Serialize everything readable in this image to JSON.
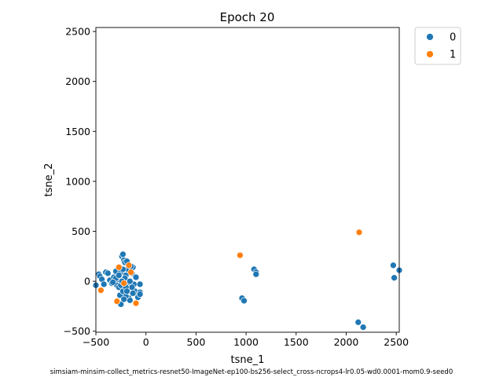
{
  "chart_data": {
    "type": "scatter",
    "title": "Epoch 20",
    "xlabel": "tsne_1",
    "ylabel": "tsne_2",
    "footnote": "simsiam-minsim-collect_metrics-resnet50-ImageNet-ep100-bs256-select_cross-ncrops4-lr0.05-wd0.0001-mom0.9-seed0",
    "xlim": [
      -500,
      2530
    ],
    "ylim": [
      -510,
      2540
    ],
    "xticks": [
      -500,
      0,
      500,
      1000,
      1500,
      2000,
      2500
    ],
    "yticks": [
      -500,
      0,
      500,
      1000,
      1500,
      2000,
      2500
    ],
    "grid": false,
    "legend": {
      "placement": "outside-top-right",
      "entries": [
        "0",
        "1"
      ]
    },
    "series": [
      {
        "name": "0",
        "color": "#1f77b4",
        "points": [
          [
            -470,
            70
          ],
          [
            -460,
            50
          ],
          [
            -440,
            20
          ],
          [
            -420,
            -30
          ],
          [
            -400,
            90
          ],
          [
            -380,
            80
          ],
          [
            -360,
            10
          ],
          [
            -340,
            -20
          ],
          [
            -320,
            40
          ],
          [
            -300,
            100
          ],
          [
            -290,
            -40
          ],
          [
            -280,
            20
          ],
          [
            -270,
            -60
          ],
          [
            -260,
            -140
          ],
          [
            -250,
            -230
          ],
          [
            -250,
            90
          ],
          [
            -240,
            250
          ],
          [
            -230,
            270
          ],
          [
            -220,
            210
          ],
          [
            -210,
            190
          ],
          [
            -200,
            60
          ],
          [
            -190,
            -20
          ],
          [
            -180,
            -80
          ],
          [
            -170,
            -170
          ],
          [
            -160,
            -190
          ],
          [
            -150,
            110
          ],
          [
            -140,
            80
          ],
          [
            -130,
            140
          ],
          [
            -120,
            -30
          ],
          [
            -110,
            -100
          ],
          [
            -100,
            40
          ],
          [
            -80,
            -160
          ],
          [
            -60,
            -30
          ],
          [
            -60,
            -110
          ],
          [
            -60,
            -130
          ],
          [
            -230,
            -100
          ],
          [
            -200,
            -150
          ],
          [
            -180,
            120
          ],
          [
            -210,
            30
          ],
          [
            -170,
            -10
          ],
          [
            -140,
            -60
          ],
          [
            -250,
            -40
          ],
          [
            -300,
            30
          ],
          [
            -330,
            -10
          ],
          [
            -220,
            -180
          ],
          [
            -190,
            200
          ],
          [
            -160,
            0
          ],
          [
            -130,
            -120
          ],
          [
            -240,
            0
          ],
          [
            -200,
            -60
          ],
          [
            -270,
            60
          ],
          [
            -150,
            150
          ],
          [
            -230,
            120
          ],
          [
            -190,
            -100
          ],
          [
            -500,
            -40
          ],
          [
            1080,
            120
          ],
          [
            1100,
            90
          ],
          [
            1100,
            70
          ],
          [
            960,
            -170
          ],
          [
            980,
            -195
          ],
          [
            2120,
            -410
          ],
          [
            2170,
            -460
          ],
          [
            2470,
            160
          ],
          [
            2480,
            35
          ],
          [
            2530,
            110
          ]
        ]
      },
      {
        "name": "1",
        "color": "#ff7f0e",
        "points": [
          [
            -450,
            -90
          ],
          [
            -290,
            -200
          ],
          [
            -270,
            140
          ],
          [
            -220,
            -20
          ],
          [
            -170,
            160
          ],
          [
            -100,
            -220
          ],
          [
            -150,
            90
          ],
          [
            940,
            260
          ],
          [
            2130,
            490
          ]
        ]
      }
    ]
  }
}
